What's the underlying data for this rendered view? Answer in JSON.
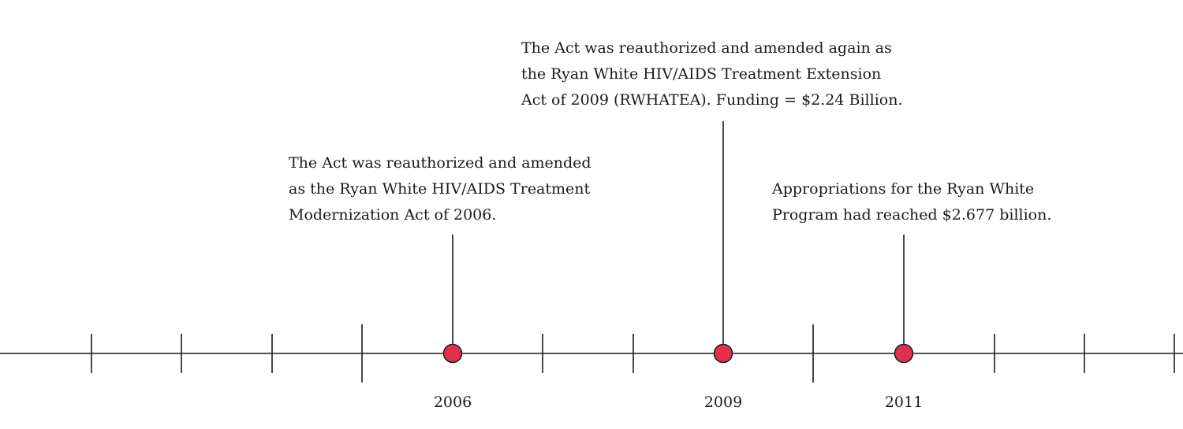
{
  "timeline": {
    "colors": {
      "line": "#1a1a1a",
      "marker_fill": "#e0304e",
      "marker_stroke": "#1a1a1a"
    },
    "events": [
      {
        "year": "2006",
        "lines": [
          "The Act was reauthorized and amended",
          "as the Ryan White HIV/AIDS Treatment",
          "Modernization Act of 2006."
        ]
      },
      {
        "year": "2009",
        "lines": [
          "The Act was reauthorized and amended again as",
          "the Ryan White HIV/AIDS Treatment Extension",
          "Act of 2009 (RWHATEA). Funding = $2.24 Billion."
        ]
      },
      {
        "year": "2011",
        "lines": [
          "Appropriations for the Ryan White",
          "Program had reached $2.677 billion."
        ]
      }
    ]
  }
}
